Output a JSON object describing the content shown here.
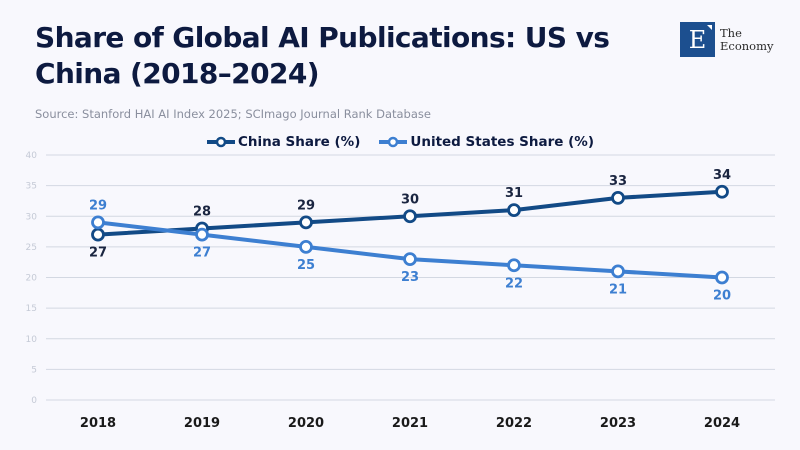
{
  "header": {
    "title": "Share of Global AI Publications: US vs China (2018–2024)",
    "source": "Source: Stanford HAI AI Index 2025; SCImago Journal Rank Database"
  },
  "logo": {
    "mark": "E",
    "line1": "The",
    "line2": "Economy"
  },
  "colors": {
    "china": "#124a86",
    "us": "#3d7fd1",
    "grid": "#d3d8e2",
    "china_label": "#1a2540",
    "us_label": "#3d7fd1"
  },
  "chart_data": {
    "type": "line",
    "title": "Share of Global AI Publications: US vs China (2018–2024)",
    "subtitle": "Source: Stanford HAI AI Index 2025; SCImago Journal Rank Database",
    "xlabel": "",
    "ylabel": "",
    "x": [
      "2018",
      "2019",
      "2020",
      "2021",
      "2022",
      "2023",
      "2024"
    ],
    "ylim": [
      0,
      40
    ],
    "yticks": [
      0,
      5,
      10,
      15,
      20,
      25,
      30,
      35,
      40
    ],
    "grid": true,
    "legend_position": "top-center",
    "series": [
      {
        "name": "China Share (%)",
        "values": [
          27,
          28,
          29,
          30,
          31,
          33,
          34
        ]
      },
      {
        "name": "United States Share (%)",
        "values": [
          29,
          27,
          25,
          23,
          22,
          21,
          20
        ]
      }
    ]
  }
}
